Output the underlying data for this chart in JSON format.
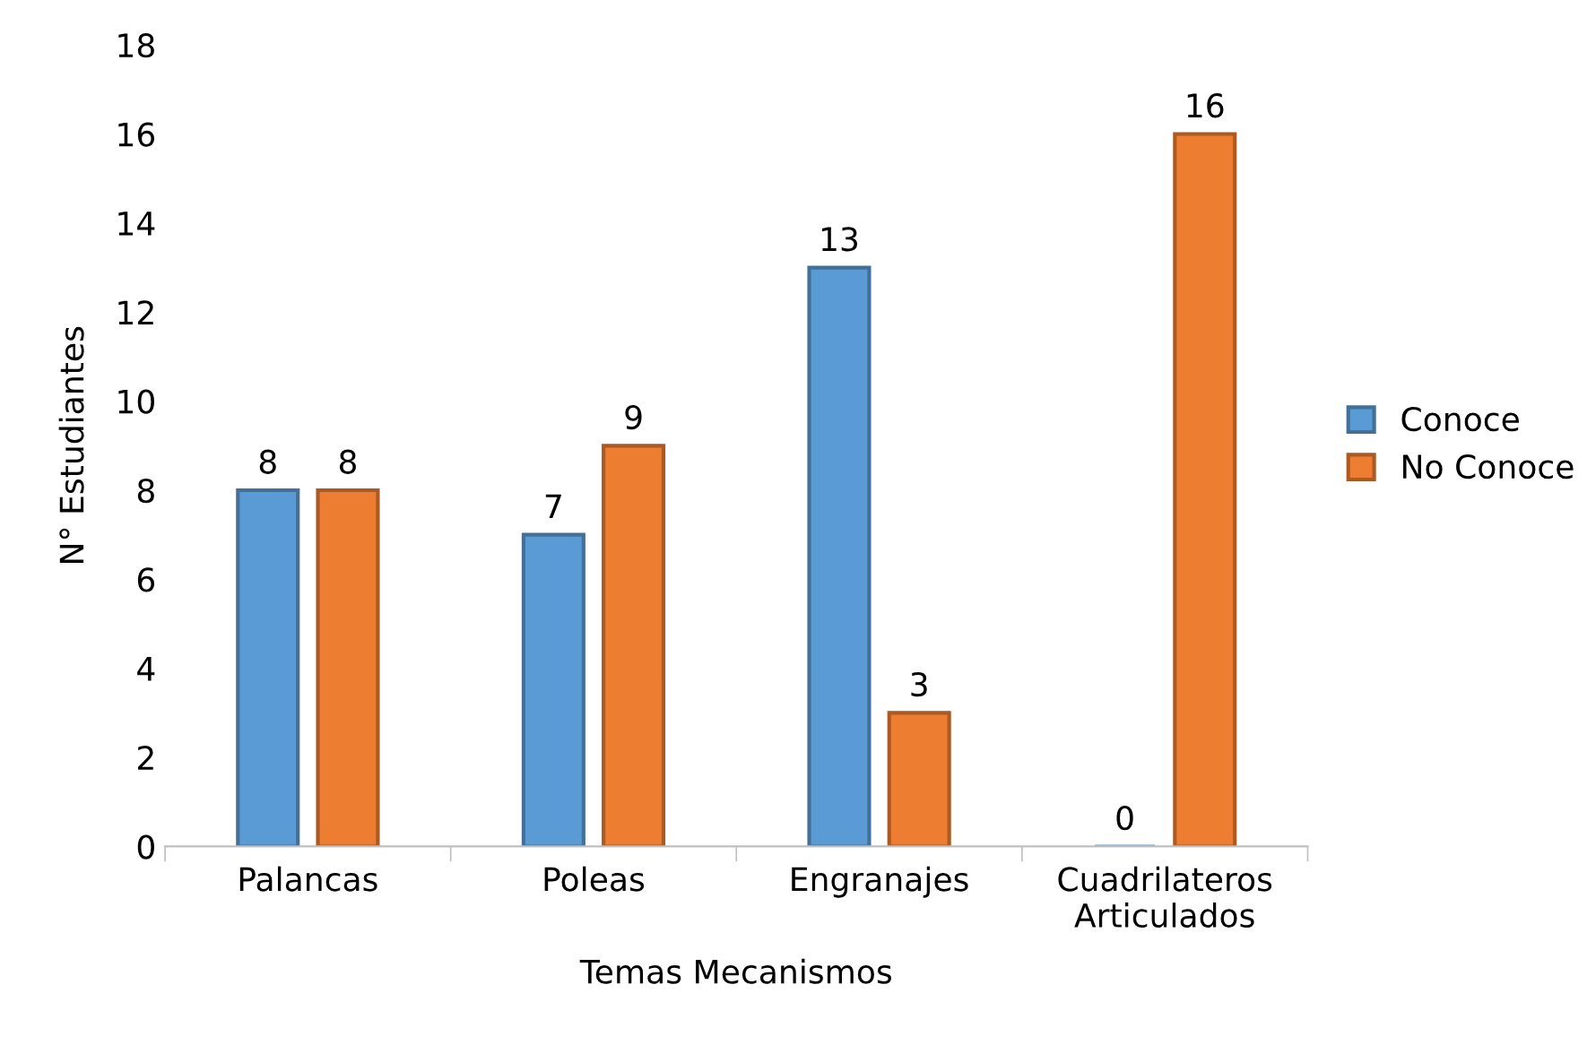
{
  "chart_data": {
    "type": "bar",
    "xlabel": "Temas Mecanismos",
    "ylabel": "N° Estudiantes",
    "categories": [
      "Palancas",
      "Poleas",
      "Engranajes",
      "Cuadrilateros\nArticulados"
    ],
    "series": [
      {
        "name": "Conoce",
        "color": "#5b9bd5",
        "values": [
          8,
          7,
          13,
          0
        ]
      },
      {
        "name": "No Conoce",
        "color": "#ed7d31",
        "values": [
          8,
          9,
          3,
          16
        ]
      }
    ],
    "ylim": [
      0,
      18
    ],
    "yticks": [
      0,
      2,
      4,
      6,
      8,
      10,
      12,
      14,
      16,
      18
    ],
    "data_labels": true,
    "grid": false,
    "legend": "right"
  }
}
